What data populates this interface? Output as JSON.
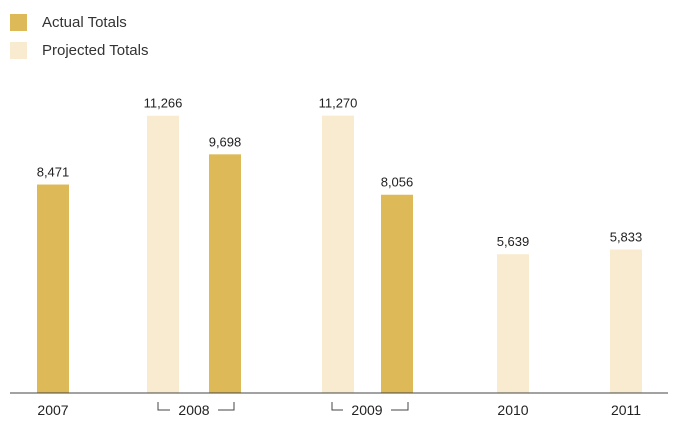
{
  "colors": {
    "actual": "#DDBA57",
    "projected": "#F8EBD0",
    "axis": "#444444"
  },
  "legend": {
    "items": [
      {
        "name": "Actual Totals",
        "color": "#DDBA57"
      },
      {
        "name": "Projected Totals",
        "color": "#F8EBD0"
      }
    ]
  },
  "chart_data": {
    "type": "bar",
    "title": "",
    "xlabel": "",
    "ylabel": "",
    "ylim": [
      0,
      12000
    ],
    "grid": false,
    "legend_position": "top-left",
    "categories": [
      "2007",
      "2008",
      "2009",
      "2010",
      "2011"
    ],
    "bars": [
      {
        "category": "2007",
        "series": "Actual Totals",
        "value": 8471,
        "label": "8,471"
      },
      {
        "category": "2008",
        "series": "Projected Totals",
        "value": 11266,
        "label": "11,266"
      },
      {
        "category": "2008",
        "series": "Actual Totals",
        "value": 9698,
        "label": "9,698"
      },
      {
        "category": "2009",
        "series": "Projected Totals",
        "value": 11270,
        "label": "11,270"
      },
      {
        "category": "2009",
        "series": "Actual Totals",
        "value": 8056,
        "label": "8,056"
      },
      {
        "category": "2010",
        "series": "Projected Totals",
        "value": 5639,
        "label": "5,639"
      },
      {
        "category": "2011",
        "series": "Projected Totals",
        "value": 5833,
        "label": "5,833"
      }
    ]
  }
}
